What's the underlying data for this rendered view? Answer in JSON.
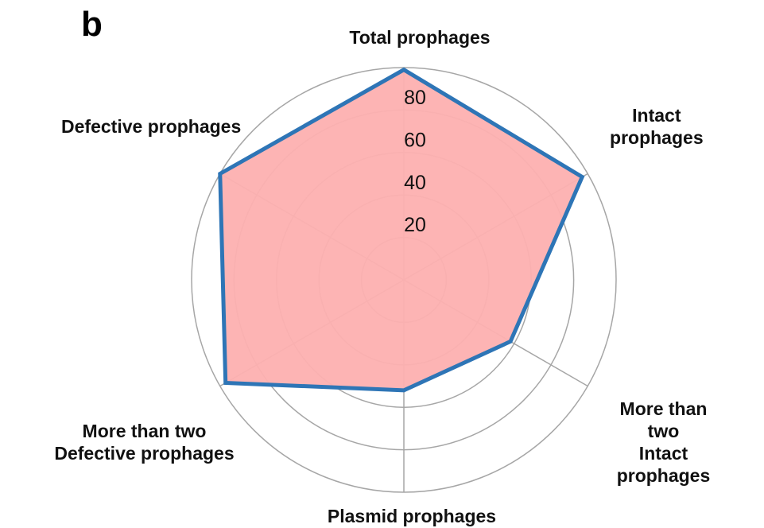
{
  "panel_label": "b",
  "chart_data": {
    "type": "radar",
    "categories": [
      "Total prophages",
      "Intact prophages",
      "More than two\nIntact prophages",
      "Plasmid prophages",
      "More than two\nDefective prophages",
      "Defective prophages"
    ],
    "values": [
      99,
      97,
      58,
      52,
      97,
      100
    ],
    "fill_color": "#fdb0b0",
    "color": "#2e75b6",
    "ylim": [
      0,
      100
    ],
    "yticks": [
      20,
      40,
      60,
      80
    ],
    "grid": true
  }
}
